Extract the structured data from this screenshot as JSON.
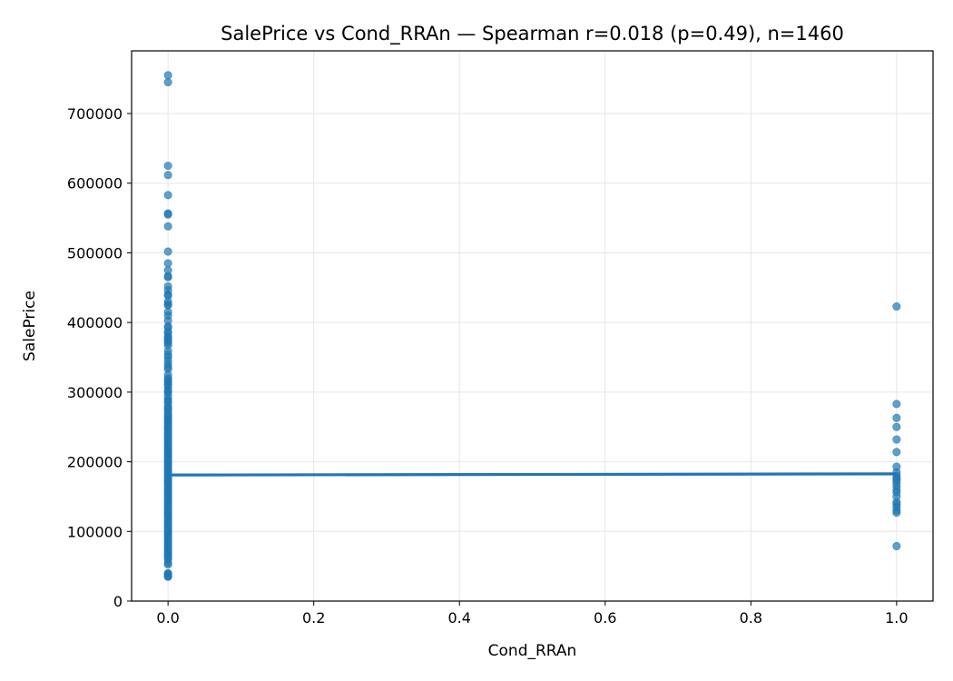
{
  "chart_data": {
    "type": "scatter",
    "title": "SalePrice vs Cond_RRAn — Spearman r=0.018 (p=0.49), n=1460",
    "xlabel": "Cond_RRAn",
    "ylabel": "SalePrice",
    "xlim": [
      -0.05,
      1.05
    ],
    "ylim": [
      0,
      790000
    ],
    "xticks": [
      0.0,
      0.2,
      0.4,
      0.6,
      0.8,
      1.0
    ],
    "xtick_labels": [
      "0.0",
      "0.2",
      "0.4",
      "0.6",
      "0.8",
      "1.0"
    ],
    "yticks": [
      0,
      100000,
      200000,
      300000,
      400000,
      500000,
      600000,
      700000
    ],
    "ytick_labels": [
      "0",
      "100000",
      "200000",
      "300000",
      "400000",
      "500000",
      "600000",
      "700000"
    ],
    "grid": true,
    "colors": {
      "points": "#1f77b4",
      "fit_line": "#1f77b4",
      "grid": "#e6e6e6",
      "axes": "#000000"
    },
    "series": [
      {
        "name": "Cond_RRAn = 0",
        "x_value": 0,
        "y": [
          755000,
          745000,
          625000,
          611657,
          582933,
          556581,
          555000,
          538000,
          501837,
          485000,
          475000,
          466500,
          465000,
          451950,
          446261,
          440000,
          438780,
          430000,
          426000,
          424870,
          415298,
          410000,
          402861,
          394617,
          392500,
          386250,
          385000,
          380000,
          377426,
          375000,
          372402,
          370878,
          367294,
          359100,
          354000,
          350000,
          345000,
          340000,
          336000,
          333168,
          325000,
          320000,
          317000,
          315000,
          311872,
          310000,
          306000,
          302000,
          299800,
          295000,
          290000,
          287000,
          285000,
          280000,
          277000,
          275000,
          271000,
          268000,
          265000,
          262500,
          260000,
          257500,
          255000,
          252000,
          250000,
          248000,
          245000,
          242000,
          240000,
          237000,
          235000,
          232000,
          230000,
          227000,
          225000,
          222000,
          220000,
          217000,
          215000,
          212000,
          210000,
          207500,
          205000,
          202500,
          200000,
          197500,
          195000,
          192500,
          190000,
          187500,
          185000,
          182500,
          180000,
          177500,
          175000,
          172500,
          170000,
          167500,
          165000,
          162500,
          160000,
          157500,
          155000,
          152500,
          150000,
          147500,
          145000,
          142500,
          140000,
          137500,
          135000,
          132500,
          130000,
          127500,
          125000,
          122500,
          120000,
          117500,
          115000,
          112500,
          110000,
          107500,
          105000,
          102500,
          100000,
          97500,
          95000,
          92500,
          90000,
          87500,
          85000,
          82500,
          80000,
          77500,
          75000,
          72500,
          70000,
          67500,
          65000,
          62500,
          60000,
          55000,
          52500,
          40000,
          39300,
          37900,
          35311,
          34900
        ]
      },
      {
        "name": "Cond_RRAn = 1",
        "x_value": 1,
        "y": [
          423000,
          283000,
          263000,
          250000,
          232000,
          214000,
          193000,
          185000,
          180000,
          177000,
          174000,
          170000,
          165000,
          160000,
          156000,
          150000,
          142000,
          139000,
          135000,
          130000,
          127000,
          79000
        ]
      }
    ],
    "fit_line": {
      "x": [
        0,
        1
      ],
      "y": [
        181000,
        182700
      ]
    }
  }
}
